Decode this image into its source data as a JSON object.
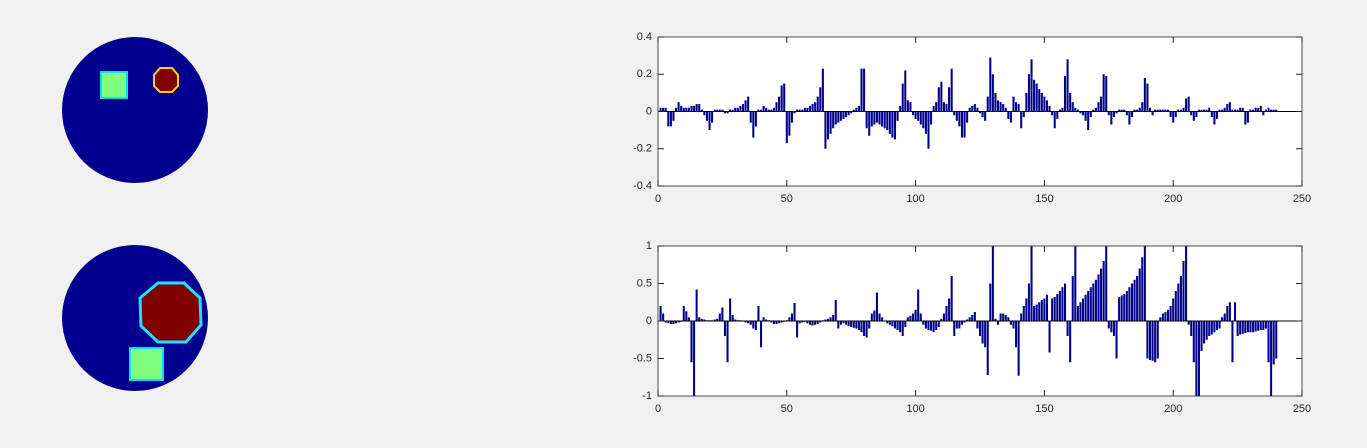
{
  "chart_data": [
    {
      "type": "bar",
      "color": "#00008b",
      "x": [
        1,
        2,
        3,
        4,
        5,
        6,
        7,
        8,
        9,
        10,
        11,
        12,
        13,
        14,
        15,
        16,
        17,
        18,
        19,
        20,
        21,
        22,
        23,
        24,
        25,
        26,
        27,
        28,
        29,
        30,
        31,
        32,
        33,
        34,
        35,
        36,
        37,
        38,
        39,
        40,
        41,
        42,
        43,
        44,
        45,
        46,
        47,
        48,
        49,
        50,
        51,
        52,
        53,
        54,
        55,
        56,
        57,
        58,
        59,
        60,
        61,
        62,
        63,
        64,
        65,
        66,
        67,
        68,
        69,
        70,
        71,
        72,
        73,
        74,
        75,
        76,
        77,
        78,
        79,
        80,
        81,
        82,
        83,
        84,
        85,
        86,
        87,
        88,
        89,
        90,
        91,
        92,
        93,
        94,
        95,
        96,
        97,
        98,
        99,
        100,
        101,
        102,
        103,
        104,
        105,
        106,
        107,
        108,
        109,
        110,
        111,
        112,
        113,
        114,
        115,
        116,
        117,
        118,
        119,
        120,
        121,
        122,
        123,
        124,
        125,
        126,
        127,
        128,
        129,
        130,
        131,
        132,
        133,
        134,
        135,
        136,
        137,
        138,
        139,
        140,
        141,
        142,
        143,
        144,
        145,
        146,
        147,
        148,
        149,
        150,
        151,
        152,
        153,
        154,
        155,
        156,
        157,
        158,
        159,
        160,
        161,
        162,
        163,
        164,
        165,
        166,
        167,
        168,
        169,
        170,
        171,
        172,
        173,
        174,
        175,
        176,
        177,
        178,
        179,
        180,
        181,
        182,
        183,
        184,
        185,
        186,
        187,
        188,
        189,
        190,
        191,
        192,
        193,
        194,
        195,
        196,
        197,
        198,
        199,
        200,
        201,
        202,
        203,
        204,
        205,
        206,
        207,
        208,
        209,
        210,
        211,
        212,
        213,
        214,
        215,
        216,
        217,
        218,
        219,
        220,
        221,
        222,
        223,
        224,
        225,
        226,
        227,
        228,
        229,
        230,
        231,
        232,
        233,
        234,
        235,
        236,
        237,
        238,
        239,
        240
      ],
      "values": [
        0.02,
        0.02,
        0.02,
        -0.08,
        -0.08,
        -0.05,
        0.02,
        0.05,
        0.03,
        0.02,
        0.02,
        0.02,
        0.03,
        0.03,
        0.04,
        0.04,
        0.01,
        -0.02,
        -0.05,
        -0.1,
        -0.06,
        0.01,
        0.01,
        0.01,
        0.01,
        -0.01,
        -0.01,
        0.01,
        0.01,
        0.02,
        0.02,
        0.03,
        0.04,
        0.06,
        0.08,
        -0.06,
        -0.14,
        -0.08,
        0.01,
        0.01,
        0.03,
        0.02,
        0.01,
        0.01,
        0.02,
        0.05,
        0.08,
        0.14,
        0.15,
        -0.17,
        -0.13,
        -0.06,
        -0.01,
        0.01,
        0.01,
        0.01,
        0.02,
        0.02,
        0.03,
        0.04,
        0.05,
        0.08,
        0.13,
        0.23,
        -0.2,
        -0.15,
        -0.12,
        -0.09,
        -0.07,
        -0.06,
        -0.05,
        -0.04,
        -0.03,
        -0.02,
        -0.01,
        0.01,
        0.02,
        0.03,
        0.23,
        0.23,
        -0.09,
        -0.13,
        -0.08,
        -0.07,
        -0.06,
        -0.07,
        -0.08,
        -0.09,
        -0.1,
        -0.12,
        -0.14,
        -0.15,
        -0.05,
        0.03,
        0.15,
        0.22,
        0.06,
        0.05,
        -0.02,
        -0.04,
        -0.05,
        -0.07,
        -0.09,
        -0.12,
        -0.2,
        -0.07,
        0.03,
        0.05,
        0.13,
        0.16,
        0.05,
        0.04,
        0.13,
        0.23,
        -0.02,
        -0.05,
        -0.08,
        -0.14,
        -0.14,
        -0.06,
        0.02,
        0.03,
        0.04,
        0.02,
        -0.01,
        -0.03,
        -0.05,
        0.08,
        0.29,
        0.2,
        0.1,
        0.06,
        0.05,
        0.04,
        0.02,
        -0.04,
        -0.06,
        0.08,
        0.05,
        0.04,
        -0.09,
        -0.03,
        0.1,
        0.2,
        0.28,
        0.17,
        0.15,
        0.12,
        0.1,
        0.08,
        0.06,
        0.03,
        -0.02,
        -0.09,
        -0.04,
        0.01,
        0.02,
        0.19,
        0.28,
        0.1,
        0.05,
        0.02,
        0.01,
        -0.01,
        -0.02,
        -0.05,
        -0.1,
        -0.03,
        0.01,
        0.02,
        0.05,
        0.08,
        0.2,
        0.19,
        -0.02,
        -0.07,
        -0.03,
        -0.01,
        0.01,
        0.01,
        0.01,
        -0.02,
        -0.07,
        -0.03,
        0.01,
        0.01,
        0.02,
        0.05,
        0.18,
        0.15,
        0.02,
        -0.02,
        0.01,
        0.01,
        0.01,
        0.01,
        0.01,
        0.01,
        -0.03,
        -0.06,
        -0.03,
        0.01,
        0.01,
        0.02,
        0.07,
        0.08,
        -0.02,
        -0.05,
        -0.03,
        0.01,
        0.01,
        0.01,
        0.01,
        0.02,
        -0.03,
        -0.07,
        -0.04,
        0.01,
        0.01,
        0.02,
        0.04,
        0.05,
        0.01,
        0.01,
        0.01,
        0.02,
        0.02,
        -0.07,
        -0.06,
        0.01,
        0.01,
        0.02,
        0.02,
        0.03,
        -0.02,
        0.01,
        0.02,
        0.01,
        0.01,
        0.01
      ],
      "xlim": [
        0,
        250
      ],
      "xticks": [
        0,
        50,
        100,
        150,
        200,
        250
      ],
      "ylim": [
        -0.4,
        0.4
      ],
      "yticks": [
        -0.4,
        -0.2,
        0,
        0.2,
        0.4
      ]
    },
    {
      "type": "bar",
      "color": "#00008b",
      "x": [
        1,
        2,
        3,
        4,
        5,
        6,
        7,
        8,
        9,
        10,
        11,
        12,
        13,
        14,
        15,
        16,
        17,
        18,
        19,
        20,
        21,
        22,
        23,
        24,
        25,
        26,
        27,
        28,
        29,
        30,
        31,
        32,
        33,
        34,
        35,
        36,
        37,
        38,
        39,
        40,
        41,
        42,
        43,
        44,
        45,
        46,
        47,
        48,
        49,
        50,
        51,
        52,
        53,
        54,
        55,
        56,
        57,
        58,
        59,
        60,
        61,
        62,
        63,
        64,
        65,
        66,
        67,
        68,
        69,
        70,
        71,
        72,
        73,
        74,
        75,
        76,
        77,
        78,
        79,
        80,
        81,
        82,
        83,
        84,
        85,
        86,
        87,
        88,
        89,
        90,
        91,
        92,
        93,
        94,
        95,
        96,
        97,
        98,
        99,
        100,
        101,
        102,
        103,
        104,
        105,
        106,
        107,
        108,
        109,
        110,
        111,
        112,
        113,
        114,
        115,
        116,
        117,
        118,
        119,
        120,
        121,
        122,
        123,
        124,
        125,
        126,
        127,
        128,
        129,
        130,
        131,
        132,
        133,
        134,
        135,
        136,
        137,
        138,
        139,
        140,
        141,
        142,
        143,
        144,
        145,
        146,
        147,
        148,
        149,
        150,
        151,
        152,
        153,
        154,
        155,
        156,
        157,
        158,
        159,
        160,
        161,
        162,
        163,
        164,
        165,
        166,
        167,
        168,
        169,
        170,
        171,
        172,
        173,
        174,
        175,
        176,
        177,
        178,
        179,
        180,
        181,
        182,
        183,
        184,
        185,
        186,
        187,
        188,
        189,
        190,
        191,
        192,
        193,
        194,
        195,
        196,
        197,
        198,
        199,
        200,
        201,
        202,
        203,
        204,
        205,
        206,
        207,
        208,
        209,
        210,
        211,
        212,
        213,
        214,
        215,
        216,
        217,
        218,
        219,
        220,
        221,
        222,
        223,
        224,
        225,
        226,
        227,
        228,
        229,
        230,
        231,
        232,
        233,
        234,
        235,
        236,
        237,
        238,
        239,
        240
      ],
      "values": [
        0.2,
        0.1,
        -0.02,
        -0.03,
        -0.04,
        -0.04,
        -0.03,
        -0.02,
        -0.01,
        0.2,
        0.13,
        0.05,
        -0.55,
        -1,
        0.42,
        0.05,
        0.03,
        0.02,
        0.01,
        0.01,
        0.01,
        0.02,
        0.03,
        0.1,
        0.18,
        -0.2,
        -0.55,
        0.3,
        0.08,
        0.02,
        0.01,
        0.01,
        0,
        -0.02,
        -0.03,
        -0.05,
        -0.1,
        -0.12,
        0.2,
        -0.35,
        0.05,
        0.02,
        0.01,
        -0.02,
        -0.04,
        -0.04,
        -0.03,
        -0.02,
        -0.01,
        0.01,
        0.05,
        0.1,
        0.24,
        -0.22,
        -0.03,
        -0.02,
        -0.01,
        -0.03,
        -0.05,
        -0.06,
        -0.05,
        -0.04,
        -0.02,
        0.01,
        0.02,
        0.03,
        0.05,
        0.08,
        0.28,
        -0.1,
        -0.05,
        -0.03,
        -0.05,
        -0.07,
        -0.08,
        -0.09,
        -0.1,
        -0.12,
        -0.15,
        -0.2,
        -0.22,
        -0.1,
        0.1,
        0.14,
        0.38,
        0.1,
        0.05,
        0,
        -0.03,
        -0.05,
        -0.07,
        -0.1,
        -0.12,
        -0.15,
        -0.2,
        -0.08,
        0.05,
        0.07,
        0.1,
        0.15,
        0.42,
        0.1,
        -0.05,
        -0.1,
        -0.12,
        -0.13,
        -0.15,
        -0.12,
        -0.08,
        0.03,
        0.1,
        0.2,
        0.3,
        0.6,
        -0.2,
        -0.1,
        -0.1,
        -0.05,
        -0.02,
        0.02,
        0.05,
        0.08,
        0.12,
        -0.1,
        -0.2,
        -0.3,
        -0.35,
        -0.72,
        0.5,
        1,
        0.03,
        -0.05,
        0.1,
        0.1,
        0.08,
        0.05,
        -0.05,
        -0.1,
        -0.35,
        -0.73,
        0.1,
        0.2,
        0.3,
        0.5,
        1,
        0.2,
        0.22,
        0.25,
        0.28,
        0.3,
        0.35,
        -0.42,
        0.3,
        0.32,
        0.36,
        0.4,
        0.45,
        0.5,
        -0.2,
        -0.55,
        0.6,
        1,
        0.2,
        0.25,
        0.3,
        0.35,
        0.4,
        0.45,
        0.5,
        0.55,
        0.62,
        0.7,
        0.8,
        1,
        -0.1,
        -0.15,
        -0.2,
        -0.5,
        0.32,
        0.34,
        0.36,
        0.4,
        0.45,
        0.5,
        0.55,
        0.6,
        0.7,
        0.85,
        1,
        -0.5,
        -0.52,
        -0.53,
        -0.55,
        -0.5,
        0.05,
        0.1,
        0.12,
        0.15,
        0.2,
        0.3,
        0.4,
        0.5,
        0.6,
        0.8,
        1,
        -0.05,
        -0.2,
        -0.55,
        -1,
        -1,
        -0.4,
        -0.3,
        -0.25,
        -0.2,
        -0.18,
        -0.15,
        -0.12,
        -0.1,
        0.05,
        0.1,
        0.2,
        0.25,
        -0.55,
        0.25,
        -0.2,
        -0.18,
        -0.17,
        -0.16,
        -0.15,
        -0.15,
        -0.15,
        -0.14,
        -0.13,
        -0.12,
        -0.12,
        -0.1,
        -0.55,
        -1,
        -0.58,
        -0.5
      ],
      "xlim": [
        0,
        250
      ],
      "xticks": [
        0,
        50,
        100,
        150,
        200,
        250
      ],
      "ylim": [
        -1,
        1
      ],
      "yticks": [
        -1,
        -0.5,
        0,
        0.5,
        1
      ]
    }
  ]
}
